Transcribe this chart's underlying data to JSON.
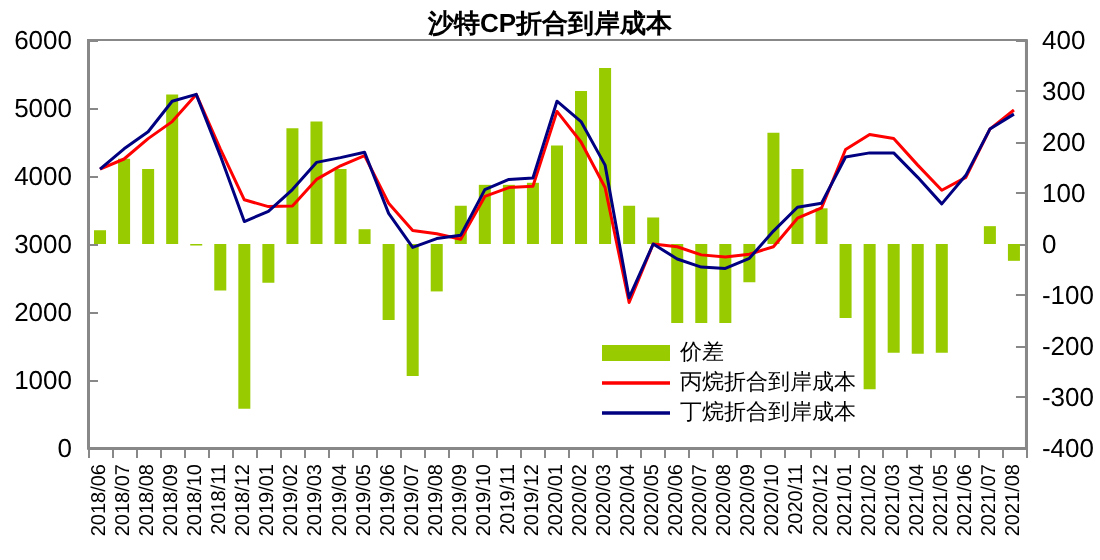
{
  "chart_data": {
    "type": "bar",
    "title": "沙特CP折合到岸成本",
    "categories": [
      "2018/06",
      "2018/07",
      "2018/08",
      "2018/09",
      "2018/10",
      "2018/11",
      "2018/12",
      "2019/01",
      "2019/02",
      "2019/03",
      "2019/04",
      "2019/05",
      "2019/06",
      "2019/07",
      "2019/08",
      "2019/09",
      "2019/10",
      "2019/11",
      "2019/12",
      "2020/01",
      "2020/02",
      "2020/03",
      "2020/04",
      "2020/05",
      "2020/06",
      "2020/07",
      "2020/08",
      "2020/09",
      "2020/10",
      "2020/11",
      "2020/12",
      "2021/01",
      "2021/02",
      "2021/03",
      "2021/04",
      "2021/05",
      "2021/06",
      "2021/07",
      "2021/08"
    ],
    "series": [
      {
        "name": "价差",
        "axis": "y2",
        "color": "#99cc00",
        "values": [
          27,
          167,
          147,
          293,
          -3,
          -91,
          -323,
          -76,
          227,
          240,
          147,
          29,
          -149,
          -259,
          -93,
          75,
          116,
          116,
          120,
          193,
          300,
          345,
          75,
          52,
          -155,
          -155,
          -155,
          -75,
          218,
          147,
          70,
          -145,
          -285,
          -213,
          -215,
          -213,
          0,
          35,
          -33
        ]
      },
      {
        "name": "丙烷折合到岸成本",
        "type": "line",
        "color": "#ff0000",
        "values": [
          4100,
          4250,
          4550,
          4800,
          5200,
          4400,
          3650,
          3550,
          3560,
          3950,
          4150,
          4300,
          3600,
          3200,
          3150,
          3070,
          3700,
          3830,
          3850,
          4950,
          4500,
          3830,
          2140,
          3000,
          2960,
          2840,
          2810,
          2850,
          2960,
          3380,
          3530,
          4390,
          4610,
          4550,
          4160,
          3790,
          3980,
          4690,
          4970
        ]
      },
      {
        "name": "丁烷折合到岸成本",
        "type": "line",
        "color": "#000080",
        "values": [
          4100,
          4400,
          4650,
          5100,
          5200,
          4300,
          3330,
          3480,
          3800,
          4200,
          4270,
          4350,
          3450,
          2950,
          3080,
          3130,
          3800,
          3950,
          3970,
          5100,
          4800,
          4160,
          2210,
          3000,
          2780,
          2660,
          2640,
          2790,
          3190,
          3540,
          3600,
          4280,
          4340,
          4340,
          3980,
          3590,
          4010,
          4690,
          4910
        ]
      }
    ],
    "ylim": [
      0,
      6000
    ],
    "yticks": [
      0,
      1000,
      2000,
      3000,
      4000,
      5000,
      6000
    ],
    "y2lim": [
      -400,
      400
    ],
    "y2ticks": [
      -400,
      -300,
      -200,
      -100,
      0,
      100,
      200,
      300,
      400
    ],
    "legend": "bottom",
    "grid": false,
    "marker": "none",
    "line_style": "solid"
  }
}
